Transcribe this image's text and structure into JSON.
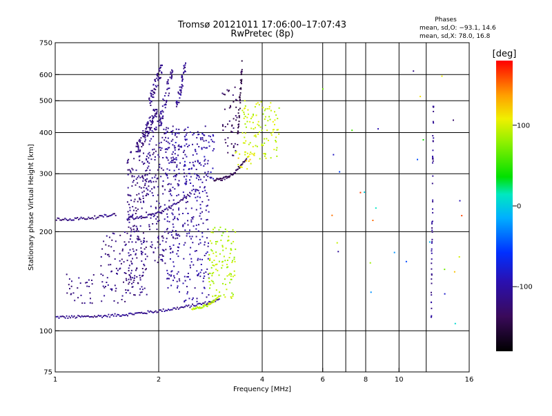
{
  "chart_data": {
    "type": "scatter",
    "title": "Tromsø 20121011 17:06:00–17:07:43",
    "subtitle": "RwPretec (8p)",
    "xlabel": "Frequency [MHz]",
    "ylabel": "Stationary phase Virtual Height [km]",
    "x_scale": "log",
    "y_scale": "log",
    "xlim": [
      1,
      16
    ],
    "ylim": [
      75,
      750
    ],
    "x_ticks": [
      1,
      2,
      4,
      6,
      8,
      10,
      16
    ],
    "x_tick_labels": [
      "1",
      "2",
      "4",
      "6",
      "8",
      "10",
      "16"
    ],
    "x_gridlines": [
      2,
      4,
      6,
      7,
      8,
      10,
      12
    ],
    "y_ticks": [
      75,
      100,
      200,
      300,
      400,
      500,
      600,
      750
    ],
    "y_tick_labels": [
      "75",
      "100",
      "200",
      "300",
      "400",
      "500",
      "600",
      "750"
    ],
    "grid": true,
    "phase_info": {
      "heading": "Phases",
      "line_o": "mean, sd,O: −93.1, 14.6",
      "line_x": "mean, sd,X:  78.0, 16.8"
    },
    "colorbar": {
      "label": "[deg]",
      "range": [
        -180,
        180
      ],
      "ticks": [
        100,
        0,
        -100
      ],
      "tick_labels": [
        "100",
        "0",
        "-100"
      ]
    },
    "traces": [
      {
        "x_range": [
          1.0,
          3.0
        ],
        "y_range": [
          110,
          124
        ],
        "phase": -112,
        "n": 130,
        "shape": "curve"
      },
      {
        "x_range": [
          1.72,
          1.98
        ],
        "y_range": [
          350,
          470
        ],
        "phase": -118,
        "n": 90,
        "shape": "band"
      },
      {
        "x_range": [
          1.85,
          2.05
        ],
        "y_range": [
          470,
          640
        ],
        "phase": -115,
        "n": 60,
        "shape": "band"
      },
      {
        "x_range": [
          2.0,
          2.2
        ],
        "y_range": [
          420,
          630
        ],
        "phase": -112,
        "n": 60,
        "shape": "band"
      },
      {
        "x_range": [
          2.25,
          2.4
        ],
        "y_range": [
          470,
          650
        ],
        "phase": -110,
        "n": 45,
        "shape": "band"
      },
      {
        "x_range": [
          1.62,
          1.85
        ],
        "y_range": [
          128,
          350
        ],
        "phase": -118,
        "n": 220,
        "shape": "cloud"
      },
      {
        "x_range": [
          1.85,
          2.1
        ],
        "y_range": [
          160,
          460
        ],
        "phase": -114,
        "n": 160,
        "shape": "cloud"
      },
      {
        "x_range": [
          2.1,
          2.3
        ],
        "y_range": [
          130,
          420
        ],
        "phase": -108,
        "n": 160,
        "shape": "cloud"
      },
      {
        "x_range": [
          2.35,
          2.8
        ],
        "y_range": [
          120,
          420
        ],
        "phase": -104,
        "n": 210,
        "shape": "cloud"
      },
      {
        "x_range": [
          2.2,
          2.9
        ],
        "y_range": [
          280,
          400
        ],
        "phase": -98,
        "n": 80,
        "shape": "cloud"
      },
      {
        "x_range": [
          1.35,
          1.62
        ],
        "y_range": [
          120,
          200
        ],
        "phase": -118,
        "n": 70,
        "shape": "cloud"
      },
      {
        "x_range": [
          1.08,
          1.3
        ],
        "y_range": [
          120,
          150
        ],
        "phase": -118,
        "n": 30,
        "shape": "cloud"
      },
      {
        "x_range": [
          1.0,
          1.5
        ],
        "y_range": [
          218,
          226
        ],
        "phase": -116,
        "n": 50,
        "shape": "curve"
      },
      {
        "x_range": [
          1.62,
          2.5
        ],
        "y_range": [
          220,
          265
        ],
        "phase": -116,
        "n": 60,
        "shape": "curve"
      },
      {
        "x_range": [
          2.9,
          3.6
        ],
        "y_range": [
          287,
          335
        ],
        "phase": -140,
        "n": 50,
        "shape": "curve"
      },
      {
        "x_range": [
          3.05,
          3.4
        ],
        "y_range": [
          340,
          550
        ],
        "phase": -135,
        "n": 45,
        "shape": "cloud"
      },
      {
        "x_range": [
          3.4,
          3.5
        ],
        "y_range": [
          400,
          660
        ],
        "phase": -145,
        "n": 40,
        "shape": "band"
      },
      {
        "x_range": [
          3.5,
          4.5
        ],
        "y_range": [
          330,
          500
        ],
        "phase": 95,
        "n": 110,
        "shape": "cloud"
      },
      {
        "x_range": [
          3.3,
          3.8
        ],
        "y_range": [
          310,
          350
        ],
        "phase": 110,
        "n": 20,
        "shape": "cloud"
      },
      {
        "x_range": [
          2.5,
          3.0
        ],
        "y_range": [
          117,
          127
        ],
        "phase": 92,
        "n": 40,
        "shape": "curve"
      },
      {
        "x_range": [
          2.8,
          3.35
        ],
        "y_range": [
          125,
          210
        ],
        "phase": 88,
        "n": 110,
        "shape": "cloud"
      },
      {
        "x_range": [
          12.4,
          12.6
        ],
        "y_range": [
          110,
          480
        ],
        "phase": -110,
        "n": 55,
        "shape": "band"
      },
      {
        "x_range": [
          6.0,
          15.5
        ],
        "y_range": [
          95,
          620
        ],
        "phase": 20,
        "n": 30,
        "shape": "sparse"
      }
    ]
  }
}
